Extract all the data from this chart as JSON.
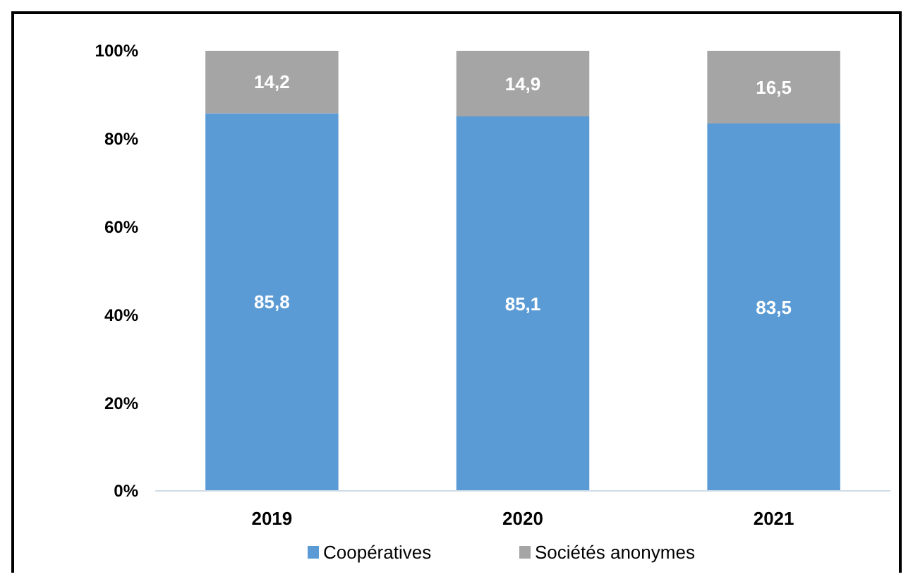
{
  "chart_data": {
    "type": "bar",
    "stacked": true,
    "categories": [
      "2019",
      "2020",
      "2021"
    ],
    "series": [
      {
        "name": "Coopératives",
        "color": "#5b9bd5",
        "values": [
          85.8,
          85.1,
          83.5
        ],
        "value_labels": [
          "85,8",
          "85,1",
          "83,5"
        ]
      },
      {
        "name": "Sociétés anonymes",
        "color": "#a5a5a5",
        "values": [
          14.2,
          14.9,
          16.5
        ],
        "value_labels": [
          "14,2",
          "14,9",
          "16,5"
        ]
      }
    ],
    "ylim": [
      0,
      100
    ],
    "yticks": [
      {
        "value": 0,
        "label": "0%"
      },
      {
        "value": 20,
        "label": "20%"
      },
      {
        "value": 40,
        "label": "40%"
      },
      {
        "value": 60,
        "label": "60%"
      },
      {
        "value": 80,
        "label": "80%"
      },
      {
        "value": 100,
        "label": "100%"
      }
    ],
    "grid": false,
    "legend": "bottom"
  }
}
